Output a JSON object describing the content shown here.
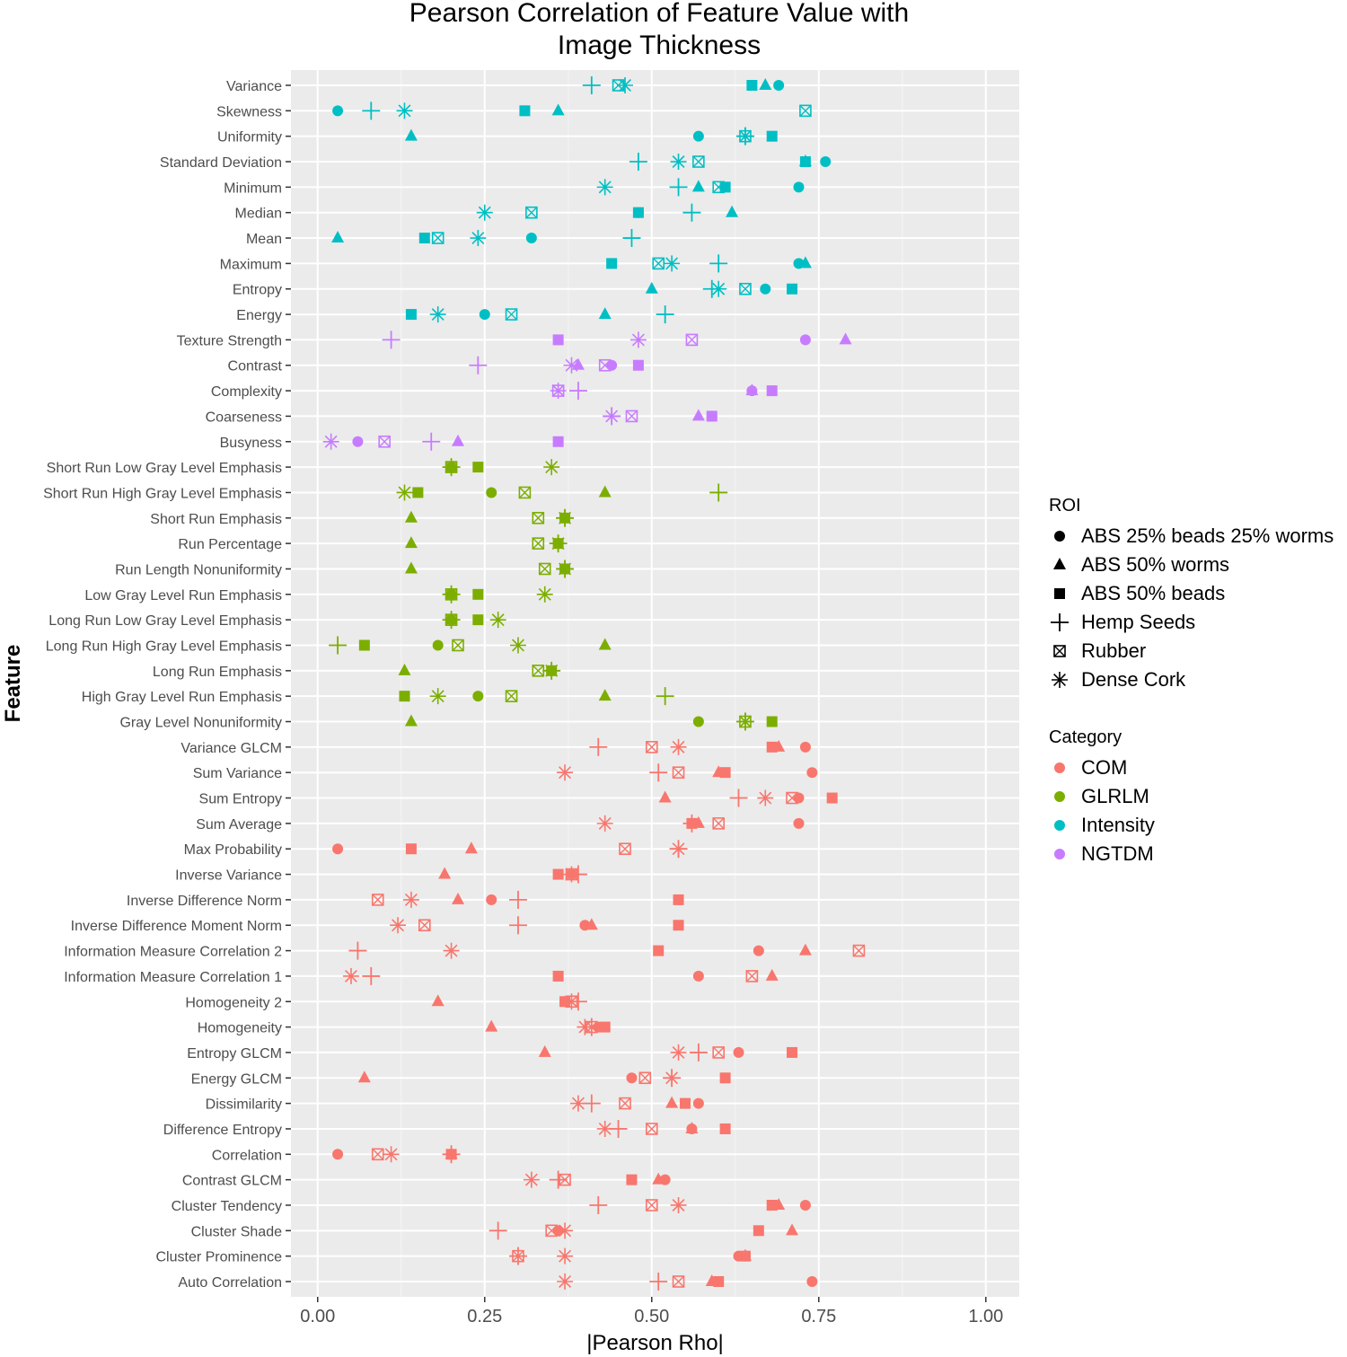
{
  "chart_data": {
    "type": "scatter",
    "title": [
      "Pearson Correlation of Feature Value with",
      "Image Thickness"
    ],
    "xlabel": "|Pearson Rho|",
    "ylabel": "Feature",
    "xlim": [
      -0.04,
      1.05
    ],
    "xticks": [
      0.0,
      0.25,
      0.5,
      0.75,
      1.0
    ],
    "xtick_labels": [
      "0.00",
      "0.25",
      "0.50",
      "0.75",
      "1.00"
    ],
    "grid": true,
    "features": [
      {
        "name": "Variance",
        "category": "Intensity",
        "values": [
          0.69,
          0.67,
          0.65,
          0.41,
          0.45,
          0.46
        ]
      },
      {
        "name": "Skewness",
        "category": "Intensity",
        "values": [
          0.03,
          0.36,
          0.31,
          0.08,
          0.73,
          0.13
        ]
      },
      {
        "name": "Uniformity",
        "category": "Intensity",
        "values": [
          0.57,
          0.14,
          0.68,
          0.64,
          0.64,
          0.64
        ]
      },
      {
        "name": "Standard Deviation",
        "category": "Intensity",
        "values": [
          0.76,
          0.73,
          0.73,
          0.48,
          0.57,
          0.54
        ]
      },
      {
        "name": "Minimum",
        "category": "Intensity",
        "values": [
          0.72,
          0.57,
          0.61,
          0.54,
          0.6,
          0.43
        ]
      },
      {
        "name": "Median",
        "category": "Intensity",
        "values": [
          0.48,
          0.62,
          0.48,
          0.56,
          0.32,
          0.25
        ]
      },
      {
        "name": "Mean",
        "category": "Intensity",
        "values": [
          0.32,
          0.03,
          0.16,
          0.47,
          0.18,
          0.24
        ]
      },
      {
        "name": "Maximum",
        "category": "Intensity",
        "values": [
          0.72,
          0.73,
          0.44,
          0.6,
          0.51,
          0.53
        ]
      },
      {
        "name": "Entropy",
        "category": "Intensity",
        "values": [
          0.67,
          0.5,
          0.71,
          0.59,
          0.64,
          0.6
        ]
      },
      {
        "name": "Energy",
        "category": "Intensity",
        "values": [
          0.25,
          0.43,
          0.14,
          0.52,
          0.29,
          0.18
        ]
      },
      {
        "name": "Texture Strength",
        "category": "NGTDM",
        "values": [
          0.73,
          0.79,
          0.36,
          0.11,
          0.56,
          0.48
        ]
      },
      {
        "name": "Contrast",
        "category": "NGTDM",
        "values": [
          0.44,
          0.39,
          0.48,
          0.24,
          0.43,
          0.38
        ]
      },
      {
        "name": "Complexity",
        "category": "NGTDM",
        "values": [
          0.65,
          0.65,
          0.68,
          0.39,
          0.36,
          0.36
        ]
      },
      {
        "name": "Coarseness",
        "category": "NGTDM",
        "values": [
          0.59,
          0.57,
          0.59,
          0.44,
          0.47,
          0.44
        ]
      },
      {
        "name": "Busyness",
        "category": "NGTDM",
        "values": [
          0.06,
          0.21,
          0.36,
          0.17,
          0.1,
          0.02
        ]
      },
      {
        "name": "Short Run Low Gray Level Emphasis",
        "category": "GLRLM",
        "values": [
          0.2,
          0.2,
          0.24,
          0.2,
          0.2,
          0.35
        ]
      },
      {
        "name": "Short Run High Gray Level Emphasis",
        "category": "GLRLM",
        "values": [
          0.26,
          0.43,
          0.15,
          0.6,
          0.31,
          0.13
        ]
      },
      {
        "name": "Short Run Emphasis",
        "category": "GLRLM",
        "values": [
          0.37,
          0.14,
          0.37,
          0.37,
          0.33,
          0.37
        ]
      },
      {
        "name": "Run Percentage",
        "category": "GLRLM",
        "values": [
          0.36,
          0.14,
          0.36,
          0.36,
          0.33,
          0.36
        ]
      },
      {
        "name": "Run Length Nonuniformity",
        "category": "GLRLM",
        "values": [
          0.37,
          0.14,
          0.37,
          0.37,
          0.34,
          0.37
        ]
      },
      {
        "name": "Low Gray Level Run Emphasis",
        "category": "GLRLM",
        "values": [
          0.2,
          0.2,
          0.24,
          0.2,
          0.2,
          0.34
        ]
      },
      {
        "name": "Long Run Low Gray Level Emphasis",
        "category": "GLRLM",
        "values": [
          0.2,
          0.2,
          0.24,
          0.2,
          0.2,
          0.27
        ]
      },
      {
        "name": "Long Run High Gray Level Emphasis",
        "category": "GLRLM",
        "values": [
          0.18,
          0.43,
          0.07,
          0.03,
          0.21,
          0.3
        ]
      },
      {
        "name": "Long Run Emphasis",
        "category": "GLRLM",
        "values": [
          0.35,
          0.13,
          0.35,
          0.35,
          0.33,
          0.35
        ]
      },
      {
        "name": "High Gray Level Run Emphasis",
        "category": "GLRLM",
        "values": [
          0.24,
          0.43,
          0.13,
          0.52,
          0.29,
          0.18
        ]
      },
      {
        "name": "Gray Level Nonuniformity",
        "category": "GLRLM",
        "values": [
          0.57,
          0.14,
          0.68,
          0.64,
          0.64,
          0.64
        ]
      },
      {
        "name": "Variance GLCM",
        "category": "COM",
        "values": [
          0.73,
          0.69,
          0.68,
          0.42,
          0.5,
          0.54
        ]
      },
      {
        "name": "Sum Variance",
        "category": "COM",
        "values": [
          0.74,
          0.6,
          0.61,
          0.51,
          0.54,
          0.37
        ]
      },
      {
        "name": "Sum Entropy",
        "category": "COM",
        "values": [
          0.72,
          0.52,
          0.77,
          0.63,
          0.71,
          0.67
        ]
      },
      {
        "name": "Sum Average",
        "category": "COM",
        "values": [
          0.72,
          0.57,
          0.56,
          0.56,
          0.6,
          0.43
        ]
      },
      {
        "name": "Max Probability",
        "category": "COM",
        "values": [
          0.03,
          0.23,
          0.14,
          0.54,
          0.46,
          0.54
        ]
      },
      {
        "name": "Inverse Variance",
        "category": "COM",
        "values": [
          0.38,
          0.19,
          0.36,
          0.39,
          0.38,
          0.38
        ]
      },
      {
        "name": "Inverse Difference Norm",
        "category": "COM",
        "values": [
          0.26,
          0.21,
          0.54,
          0.3,
          0.09,
          0.14
        ]
      },
      {
        "name": "Inverse Difference Moment Norm",
        "category": "COM",
        "values": [
          0.4,
          0.41,
          0.54,
          0.3,
          0.16,
          0.12
        ]
      },
      {
        "name": "Information Measure Correlation 2",
        "category": "COM",
        "values": [
          0.66,
          0.73,
          0.51,
          0.06,
          0.81,
          0.2
        ]
      },
      {
        "name": "Information Measure Correlation 1",
        "category": "COM",
        "values": [
          0.57,
          0.68,
          0.36,
          0.08,
          0.65,
          0.05
        ]
      },
      {
        "name": "Homogeneity 2",
        "category": "COM",
        "values": [
          0.37,
          0.18,
          0.37,
          0.39,
          0.38,
          0.38
        ]
      },
      {
        "name": "Homogeneity",
        "category": "COM",
        "values": [
          0.42,
          0.26,
          0.43,
          0.41,
          0.41,
          0.4
        ]
      },
      {
        "name": "Entropy GLCM",
        "category": "COM",
        "values": [
          0.63,
          0.34,
          0.71,
          0.57,
          0.6,
          0.54
        ]
      },
      {
        "name": "Energy GLCM",
        "category": "COM",
        "values": [
          0.47,
          0.07,
          0.61,
          0.53,
          0.49,
          0.53
        ]
      },
      {
        "name": "Dissimilarity",
        "category": "COM",
        "values": [
          0.57,
          0.53,
          0.55,
          0.41,
          0.46,
          0.39
        ]
      },
      {
        "name": "Difference Entropy",
        "category": "COM",
        "values": [
          0.56,
          0.56,
          0.61,
          0.45,
          0.5,
          0.43
        ]
      },
      {
        "name": "Correlation",
        "category": "COM",
        "values": [
          0.03,
          0.2,
          0.2,
          0.2,
          0.09,
          0.11
        ]
      },
      {
        "name": "Contrast GLCM",
        "category": "COM",
        "values": [
          0.52,
          0.51,
          0.47,
          0.36,
          0.37,
          0.32
        ]
      },
      {
        "name": "Cluster Tendency",
        "category": "COM",
        "values": [
          0.73,
          0.69,
          0.68,
          0.42,
          0.5,
          0.54
        ]
      },
      {
        "name": "Cluster Shade",
        "category": "COM",
        "values": [
          0.36,
          0.71,
          0.66,
          0.27,
          0.35,
          0.37
        ]
      },
      {
        "name": "Cluster Prominence",
        "category": "COM",
        "values": [
          0.63,
          0.64,
          0.64,
          0.3,
          0.3,
          0.37
        ]
      },
      {
        "name": "Auto Correlation",
        "category": "COM",
        "values": [
          0.74,
          0.59,
          0.6,
          0.51,
          0.54,
          0.37
        ]
      }
    ],
    "roi_legend": {
      "title": "ROI",
      "items": [
        {
          "label": "ABS 25% beads 25% worms",
          "shape": "circle"
        },
        {
          "label": "ABS 50% worms",
          "shape": "triangle"
        },
        {
          "label": "ABS 50% beads",
          "shape": "square"
        },
        {
          "label": "Hemp Seeds",
          "shape": "plus"
        },
        {
          "label": "Rubber",
          "shape": "boxcross"
        },
        {
          "label": "Dense Cork",
          "shape": "asterisk"
        }
      ]
    },
    "category_legend": {
      "title": "Category",
      "items": [
        {
          "label": "COM",
          "color": "#F8766D"
        },
        {
          "label": "GLRLM",
          "color": "#7CAE00"
        },
        {
          "label": "Intensity",
          "color": "#00BFC4"
        },
        {
          "label": "NGTDM",
          "color": "#C77CFF"
        }
      ]
    }
  }
}
